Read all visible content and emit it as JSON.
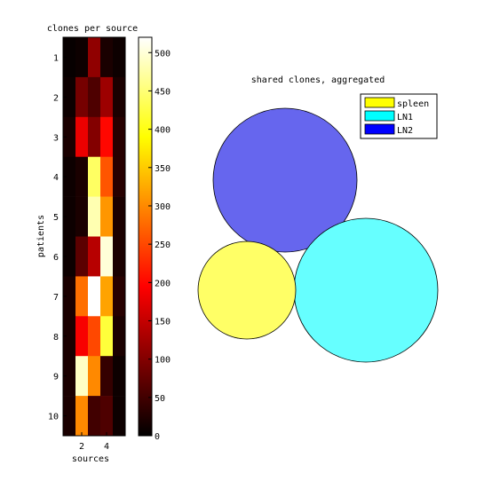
{
  "chart_data": [
    {
      "type": "heatmap",
      "title": "clones per source",
      "xlabel": "sources",
      "ylabel": "patients",
      "x_ticks": [
        "2",
        "4"
      ],
      "y_ticks": [
        "1",
        "2",
        "3",
        "4",
        "5",
        "6",
        "7",
        "8",
        "9",
        "10"
      ],
      "colormap": "hot",
      "clim": [
        0,
        520
      ],
      "colorbar_ticks": [
        0,
        50,
        100,
        150,
        200,
        250,
        300,
        350,
        400,
        450,
        500
      ],
      "values": [
        [
          5,
          10,
          110,
          20,
          10
        ],
        [
          10,
          90,
          60,
          120,
          20
        ],
        [
          20,
          180,
          100,
          200,
          30
        ],
        [
          10,
          20,
          440,
          260,
          30
        ],
        [
          10,
          20,
          480,
          310,
          20
        ],
        [
          10,
          70,
          140,
          500,
          20
        ],
        [
          20,
          280,
          520,
          320,
          30
        ],
        [
          20,
          190,
          250,
          420,
          20
        ],
        [
          20,
          490,
          300,
          40,
          10
        ],
        [
          20,
          300,
          50,
          60,
          10
        ]
      ]
    },
    {
      "type": "venn",
      "title": "shared clones, aggregated",
      "sets": [
        {
          "name": "spleen",
          "color": "#ffff66"
        },
        {
          "name": "LN1",
          "color": "#66ffff"
        },
        {
          "name": "LN2",
          "color": "#6666ff"
        }
      ],
      "legend_colors": [
        "#ffff00",
        "#00ffff",
        "#0000ff"
      ],
      "legend_position": "top-right"
    }
  ]
}
